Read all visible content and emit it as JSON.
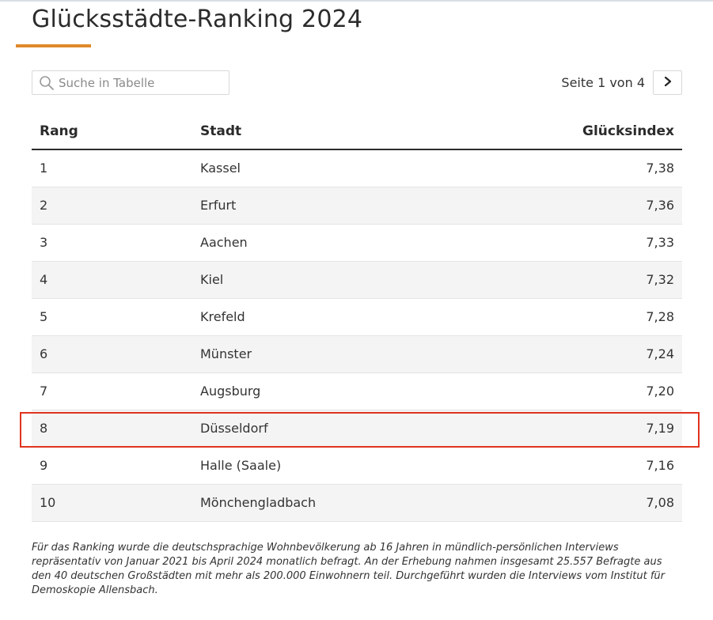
{
  "page": {
    "title": "Glücksstädte-Ranking 2024",
    "accent_color": "#e0892a",
    "highlight_color": "#e0331f"
  },
  "search": {
    "placeholder": "Suche in Tabelle",
    "value": "",
    "icon": "search-icon"
  },
  "pagination": {
    "label": "Seite 1 von 4",
    "next_icon": "chevron-right-icon"
  },
  "table": {
    "headers": {
      "rank": "Rang",
      "city": "Stadt",
      "index": "Glücksindex"
    },
    "rows": [
      {
        "rank": "1",
        "city": "Kassel",
        "index": "7,38"
      },
      {
        "rank": "2",
        "city": "Erfurt",
        "index": "7,36"
      },
      {
        "rank": "3",
        "city": "Aachen",
        "index": "7,33"
      },
      {
        "rank": "4",
        "city": "Kiel",
        "index": "7,32"
      },
      {
        "rank": "5",
        "city": "Krefeld",
        "index": "7,28"
      },
      {
        "rank": "6",
        "city": "Münster",
        "index": "7,24"
      },
      {
        "rank": "7",
        "city": "Augsburg",
        "index": "7,20"
      },
      {
        "rank": "8",
        "city": "Düsseldorf",
        "index": "7,19"
      },
      {
        "rank": "9",
        "city": "Halle (Saale)",
        "index": "7,16"
      },
      {
        "rank": "10",
        "city": "Mönchengladbach",
        "index": "7,08"
      }
    ],
    "highlighted_rank": "8"
  },
  "footnote": "Für das Ranking wurde die deutschsprachige Wohnbevölkerung ab 16 Jahren in mündlich-persönlichen Interviews repräsentativ von Januar 2021 bis April 2024 monatlich befragt. An der Erhebung nahmen insgesamt 25.557 Befragte aus den 40 deutschen Großstädten mit mehr als 200.000 Einwohnern teil. Durchgeführt wurden die Interviews vom Institut für Demoskopie Allensbach."
}
